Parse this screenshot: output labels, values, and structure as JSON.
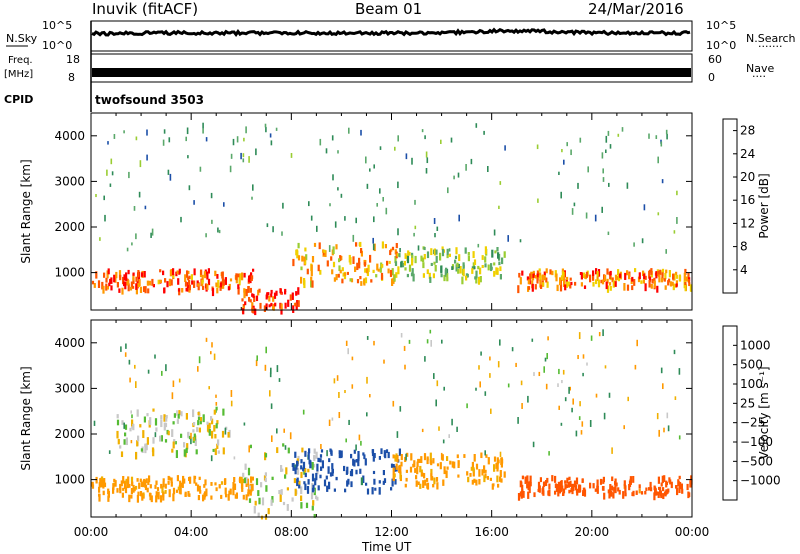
{
  "header": {
    "station": "Inuvik (fitACF)",
    "beam": "Beam 01",
    "date": "24/Mar/2016"
  },
  "strip_panels": {
    "nsky": {
      "left_label": "N.Sky",
      "left_ticks": [
        "10^5",
        "10^0"
      ],
      "right_ticks": [
        "10^5",
        "10^0"
      ],
      "right_label": "N.Search",
      "right_marker": "·······"
    },
    "freq": {
      "left_label_line1": "Freq.",
      "left_label_line2": "[MHz]",
      "left_ticks": [
        "18",
        "8"
      ],
      "right_ticks": [
        "60",
        "0"
      ],
      "right_label": "Nave",
      "right_marker": "····"
    },
    "cpid": {
      "label": "CPID",
      "text": "twofsound 3503"
    }
  },
  "colors": {
    "power_scale": [
      "#0000ff",
      "#1c4fa8",
      "#2e8b57",
      "#5aa86a",
      "#9acd32",
      "#f0d000",
      "#ff9900",
      "#ff5500",
      "#ff0000"
    ],
    "velocity_scale": [
      "#ff0000",
      "#ff5500",
      "#ff9900",
      "#f0b000",
      "#c8c8c8",
      "#55bb33",
      "#2e8b57",
      "#1c4fa8",
      "#0033cc"
    ]
  },
  "chart_data": [
    {
      "type": "heatmap",
      "title": "",
      "xlabel": "",
      "ylabel": "Slant Range [km]",
      "x_ticks": [
        "00:00",
        "04:00",
        "08:00",
        "12:00",
        "16:00",
        "20:00",
        "00:00"
      ],
      "x_range_hours": [
        0,
        24
      ],
      "y_ticks": [
        1000,
        2000,
        3000,
        4000
      ],
      "ylim": [
        180,
        4500
      ],
      "colorbar": {
        "label": "Power [dB]",
        "ticks": [
          4,
          8,
          12,
          16,
          20,
          24,
          28
        ],
        "range": [
          0,
          30
        ]
      },
      "echo_bands": [
        {
          "start_hour": 0.0,
          "end_hour": 6.5,
          "range_km": [
            650,
            1100
          ],
          "power_db": 26
        },
        {
          "start_hour": 6.0,
          "end_hour": 8.3,
          "range_km": [
            200,
            700
          ],
          "power_db": 28
        },
        {
          "start_hour": 8.0,
          "end_hour": 12.3,
          "range_km": [
            800,
            1700
          ],
          "power_db": 22
        },
        {
          "start_hour": 12.0,
          "end_hour": 16.5,
          "range_km": [
            900,
            1600
          ],
          "power_db": 14
        },
        {
          "start_hour": 17.0,
          "end_hour": 24.0,
          "range_km": [
            700,
            1100
          ],
          "power_db": 24
        }
      ]
    },
    {
      "type": "heatmap",
      "title": "",
      "xlabel": "Time UT",
      "ylabel": "Slant Range [km]",
      "x_ticks": [
        "00:00",
        "04:00",
        "08:00",
        "12:00",
        "16:00",
        "20:00",
        "00:00"
      ],
      "x_range_hours": [
        0,
        24
      ],
      "y_ticks": [
        1000,
        2000,
        3000,
        4000
      ],
      "ylim": [
        180,
        4500
      ],
      "colorbar": {
        "label": "Velocity [m s⁻¹]",
        "tick_labels": [
          "1000",
          "500",
          "100",
          "25",
          "−25",
          "−100",
          "−500",
          "−1000"
        ]
      },
      "echo_bands": [
        {
          "start_hour": 0.0,
          "end_hour": 6.5,
          "range_km": [
            650,
            1100
          ],
          "velocity_ms": -100
        },
        {
          "start_hour": 1.0,
          "end_hour": 5.5,
          "range_km": [
            1600,
            2600
          ],
          "velocity_ms": 0
        },
        {
          "start_hour": 6.0,
          "end_hour": 9.0,
          "range_km": [
            200,
            1800
          ],
          "velocity_ms": 0
        },
        {
          "start_hour": 8.0,
          "end_hour": 12.3,
          "range_km": [
            800,
            1700
          ],
          "velocity_ms": 500
        },
        {
          "start_hour": 12.0,
          "end_hour": 16.5,
          "range_km": [
            900,
            1600
          ],
          "velocity_ms": -100
        },
        {
          "start_hour": 17.0,
          "end_hour": 24.0,
          "range_km": [
            700,
            1100
          ],
          "velocity_ms": -500
        }
      ]
    }
  ]
}
